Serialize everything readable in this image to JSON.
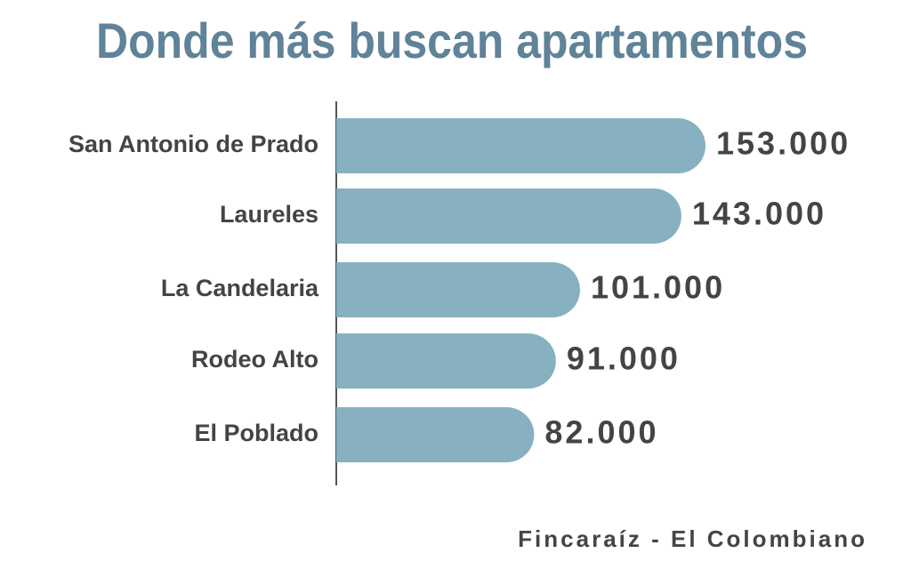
{
  "chart_data": {
    "type": "bar",
    "orientation": "horizontal",
    "title": "Donde más buscan apartamentos",
    "categories": [
      "San Antonio de Prado",
      "Laureles",
      "La Candelaria",
      "Rodeo Alto",
      "El Poblado"
    ],
    "values": [
      153000,
      143000,
      101000,
      91000,
      82000
    ],
    "value_labels": [
      "153.000",
      "143.000",
      "101.000",
      "91.000",
      "82.000"
    ],
    "color": "#87b0c0",
    "xlim": [
      0,
      153000
    ],
    "source": "Fincaraíz - El Colombiano"
  }
}
